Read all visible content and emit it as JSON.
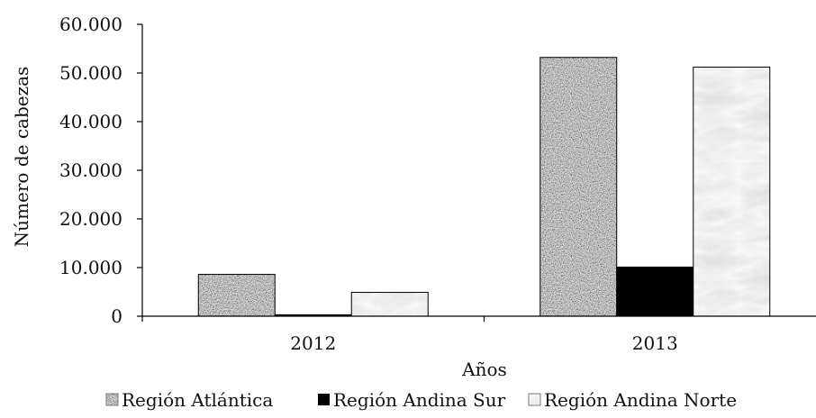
{
  "chart_data": {
    "type": "bar",
    "title": "",
    "xlabel": "Años",
    "ylabel": "Número de cabezas",
    "categories": [
      "2012",
      "2013"
    ],
    "series": [
      {
        "name": "Región Atlántica",
        "values": [
          8600,
          53200
        ],
        "pattern": "granite",
        "color": "#8c8c8c"
      },
      {
        "name": "Región Andina Sur",
        "values": [
          300,
          10100
        ],
        "pattern": "solid",
        "color": "#000000"
      },
      {
        "name": "Región Andina Norte",
        "values": [
          4900,
          51200
        ],
        "pattern": "marble",
        "color": "#e6e9ea"
      }
    ],
    "ylim": [
      0,
      60000
    ],
    "yticks": [
      0,
      10000,
      20000,
      30000,
      40000,
      50000,
      60000
    ],
    "ytick_labels": [
      "0",
      "10.000",
      "20.000",
      "30.000",
      "40.000",
      "50.000",
      "60.000"
    ],
    "grid": false,
    "legend_position": "bottom"
  }
}
